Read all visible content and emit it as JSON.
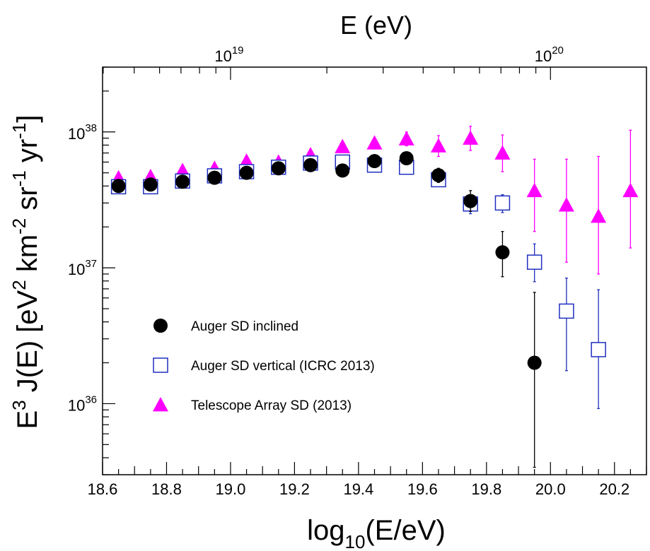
{
  "chart_data": {
    "type": "scatter",
    "title": "E (eV)",
    "xlabel": "log10(E/eV)",
    "xlabel_parts": {
      "base": "log",
      "sub": "10",
      "rest": "(E/eV)"
    },
    "ylabel": "E3 J(E)  [eV2 km-2 sr-1 yr-1]",
    "ylabel_parts": {
      "e": "E",
      "e_sup": "3",
      "j": " J(E)  [eV",
      "ev_sup": "2",
      "km": " km",
      "km_sup": "-2",
      "sr": " sr",
      "sr_sup": "-1",
      "yr": " yr",
      "yr_sup": "-1",
      "close": "]"
    },
    "xlim": [
      18.6,
      20.3
    ],
    "ylim": [
      3e+35,
      3e+38
    ],
    "ylog": true,
    "x_ticks": [
      18.6,
      18.8,
      19.0,
      19.2,
      19.4,
      19.6,
      19.8,
      20.0,
      20.2
    ],
    "x_tick_labels": [
      "18.6",
      "18.8",
      "19.0",
      "19.2",
      "19.4",
      "19.6",
      "19.8",
      "20.0",
      "20.2"
    ],
    "y_tick_labels": [
      {
        "base": "10",
        "exp": "36",
        "value": 1e+36
      },
      {
        "base": "10",
        "exp": "37",
        "value": 1e+37
      },
      {
        "base": "10",
        "exp": "38",
        "value": 1e+38
      }
    ],
    "top_axis": {
      "label": "E (eV)",
      "ticks": [
        {
          "base": "10",
          "exp": "19",
          "log10": 19
        },
        {
          "base": "10",
          "exp": "20",
          "log10": 20
        }
      ]
    },
    "legend_position": "bottom-left",
    "series": [
      {
        "name": "Auger SD inclined",
        "marker": "circle",
        "color": "#000000",
        "points": [
          {
            "x": 18.65,
            "y": 4e+37
          },
          {
            "x": 18.75,
            "y": 4.1e+37
          },
          {
            "x": 18.85,
            "y": 4.3e+37
          },
          {
            "x": 18.95,
            "y": 4.6e+37
          },
          {
            "x": 19.05,
            "y": 5e+37
          },
          {
            "x": 19.15,
            "y": 5.4e+37
          },
          {
            "x": 19.25,
            "y": 5.7e+37
          },
          {
            "x": 19.35,
            "y": 5.2e+37
          },
          {
            "x": 19.45,
            "y": 6.1e+37
          },
          {
            "x": 19.55,
            "y": 6.4e+37
          },
          {
            "x": 19.65,
            "y": 4.8e+37,
            "yerr": [
              4.25e+37,
              5.4e+37
            ]
          },
          {
            "x": 19.75,
            "y": 3.1e+37,
            "yerr": [
              2.6e+37,
              3.7e+37
            ]
          },
          {
            "x": 19.85,
            "y": 1.3e+37,
            "yerr": [
              8.6e+36,
              1.85e+37
            ]
          },
          {
            "x": 19.95,
            "y": 2e+36,
            "yerr": [
              3.4e+35,
              6.6e+36
            ]
          }
        ]
      },
      {
        "name": "Auger SD vertical (ICRC 2013)",
        "marker": "square-open",
        "color": "#1f2fbf",
        "points": [
          {
            "x": 18.65,
            "y": 3.95e+37
          },
          {
            "x": 18.75,
            "y": 3.95e+37
          },
          {
            "x": 18.85,
            "y": 4.35e+37
          },
          {
            "x": 18.95,
            "y": 4.75e+37
          },
          {
            "x": 19.05,
            "y": 5.1e+37
          },
          {
            "x": 19.15,
            "y": 5.5e+37
          },
          {
            "x": 19.25,
            "y": 5.9e+37
          },
          {
            "x": 19.35,
            "y": 6e+37
          },
          {
            "x": 19.45,
            "y": 5.7e+37
          },
          {
            "x": 19.55,
            "y": 5.5e+37
          },
          {
            "x": 19.65,
            "y": 4.45e+37,
            "yerr": [
              4.05e+37,
              4.85e+37
            ]
          },
          {
            "x": 19.75,
            "y": 2.95e+37,
            "yerr": [
              2.5e+37,
              3.35e+37
            ]
          },
          {
            "x": 19.85,
            "y": 3e+37,
            "yerr": [
              2.55e+37,
              3.45e+37
            ]
          },
          {
            "x": 19.95,
            "y": 1.1e+37,
            "yerr": [
              7.9e+36,
              1.5e+37
            ]
          },
          {
            "x": 20.05,
            "y": 4.8e+36,
            "yerr": [
              1.75e+36,
              8.4e+36
            ]
          },
          {
            "x": 20.15,
            "y": 2.5e+36,
            "yerr": [
              9.2e+35,
              6.9e+36
            ]
          }
        ]
      },
      {
        "name": "Telescope Array SD (2013)",
        "marker": "triangle",
        "color": "#ff00ff",
        "points": [
          {
            "x": 18.65,
            "y": 4.6e+37
          },
          {
            "x": 18.75,
            "y": 4.7e+37
          },
          {
            "x": 18.85,
            "y": 5.2e+37
          },
          {
            "x": 18.95,
            "y": 5.4e+37
          },
          {
            "x": 19.05,
            "y": 6.1e+37
          },
          {
            "x": 19.15,
            "y": 6e+37
          },
          {
            "x": 19.25,
            "y": 6.8e+37
          },
          {
            "x": 19.35,
            "y": 7.8e+37
          },
          {
            "x": 19.45,
            "y": 8.3e+37
          },
          {
            "x": 19.55,
            "y": 8.9e+37,
            "yerr": [
              7.9e+37,
              1e+38
            ]
          },
          {
            "x": 19.65,
            "y": 7.9e+37,
            "yerr": [
              6.6e+37,
              9.4e+37
            ]
          },
          {
            "x": 19.75,
            "y": 9e+37,
            "yerr": [
              7.3e+37,
              1.1e+38
            ]
          },
          {
            "x": 19.85,
            "y": 7e+37,
            "yerr": [
              5.1e+37,
              9.5e+37
            ]
          },
          {
            "x": 19.95,
            "y": 3.7e+37,
            "yerr": [
              1.85e+37,
              6.3e+37
            ]
          },
          {
            "x": 20.05,
            "y": 2.9e+37,
            "yerr": [
              1.1e+37,
              6.3e+37
            ]
          },
          {
            "x": 20.15,
            "y": 2.4e+37,
            "yerr": [
              9e+36,
              6.6e+37
            ]
          },
          {
            "x": 20.25,
            "y": 3.7e+37,
            "yerr": [
              1.4e+37,
              1.03e+38
            ]
          }
        ]
      }
    ]
  }
}
